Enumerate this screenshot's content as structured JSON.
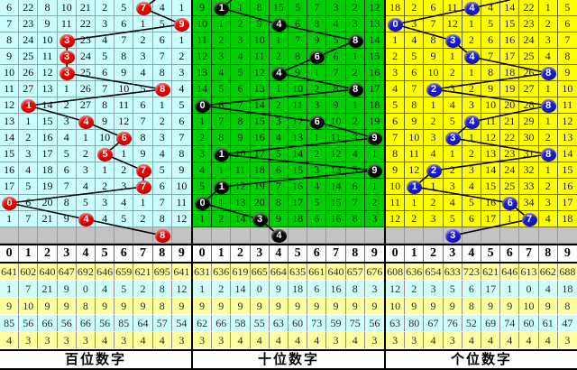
{
  "chart_data": {
    "type": "table",
    "columns": [
      "0",
      "1",
      "2",
      "3",
      "4",
      "5",
      "6",
      "7",
      "8",
      "9"
    ],
    "separator_bg": "#C3C3C3",
    "stat_row_bgs": [
      "#FFFF9E",
      "#CFFFFF",
      "#FFFF9E",
      "#CFFFFF",
      "#FFFF9E"
    ],
    "panels": [
      {
        "label": "百位数字",
        "panel_bg": "#CBFFFF",
        "grid_line": "#8FA7B5",
        "text_color": "#0b0b0b",
        "circle_color": "#EE0000",
        "lead_line_dx": 13,
        "rows": [
          [
            6,
            22,
            8,
            10,
            21,
            2,
            5,
            7,
            4,
            1
          ],
          [
            7,
            23,
            9,
            11,
            22,
            3,
            6,
            1,
            5,
            9
          ],
          [
            8,
            24,
            10,
            3,
            23,
            4,
            7,
            2,
            6,
            1
          ],
          [
            9,
            25,
            11,
            3,
            24,
            5,
            8,
            3,
            7,
            2
          ],
          [
            10,
            26,
            12,
            3,
            25,
            6,
            9,
            4,
            8,
            3
          ],
          [
            11,
            27,
            13,
            1,
            26,
            7,
            10,
            5,
            8,
            4
          ],
          [
            12,
            1,
            14,
            2,
            27,
            8,
            11,
            6,
            1,
            5
          ],
          [
            13,
            1,
            15,
            3,
            4,
            9,
            12,
            7,
            2,
            6
          ],
          [
            14,
            2,
            16,
            4,
            1,
            10,
            6,
            8,
            3,
            7
          ],
          [
            15,
            3,
            17,
            5,
            2,
            5,
            1,
            9,
            4,
            8
          ],
          [
            16,
            4,
            18,
            6,
            3,
            1,
            2,
            7,
            5,
            9
          ],
          [
            17,
            5,
            19,
            7,
            4,
            2,
            3,
            7,
            6,
            10
          ],
          [
            0,
            6,
            20,
            8,
            5,
            3,
            4,
            1,
            7,
            11
          ],
          [
            1,
            7,
            21,
            9,
            4,
            4,
            5,
            2,
            8,
            12
          ]
        ],
        "hit_columns": [
          7,
          9,
          3,
          3,
          3,
          8,
          1,
          4,
          6,
          5,
          7,
          7,
          0,
          4
        ],
        "pending_hit": 8,
        "stats": [
          [
            641,
            602,
            640,
            647,
            692,
            646,
            659,
            621,
            695,
            641
          ],
          [
            1,
            7,
            21,
            9,
            0,
            4,
            5,
            2,
            8,
            12
          ],
          [
            9,
            10,
            9,
            9,
            8,
            9,
            9,
            9,
            8,
            9
          ],
          [
            85,
            56,
            66,
            56,
            66,
            56,
            85,
            64,
            57,
            54
          ],
          [
            4,
            3,
            3,
            3,
            3,
            4,
            3,
            4,
            4,
            3
          ]
        ]
      },
      {
        "label": "十位数字",
        "panel_bg": "#00CE00",
        "grid_line": "#003B00",
        "text_color": "#001A00",
        "circle_color": "#000000",
        "lead_line_dx": 11,
        "rows": [
          [
            9,
            1,
            1,
            8,
            15,
            5,
            7,
            3,
            2,
            12
          ],
          [
            10,
            1,
            2,
            9,
            4,
            6,
            8,
            4,
            3,
            13
          ],
          [
            11,
            2,
            3,
            10,
            1,
            7,
            9,
            5,
            8,
            14
          ],
          [
            12,
            3,
            4,
            11,
            2,
            8,
            6,
            6,
            1,
            15
          ],
          [
            13,
            4,
            5,
            12,
            4,
            9,
            1,
            7,
            2,
            16
          ],
          [
            14,
            5,
            6,
            13,
            1,
            10,
            2,
            8,
            8,
            17
          ],
          [
            0,
            6,
            7,
            14,
            2,
            11,
            3,
            9,
            1,
            18
          ],
          [
            1,
            7,
            8,
            15,
            3,
            12,
            6,
            10,
            2,
            19
          ],
          [
            2,
            8,
            9,
            16,
            4,
            13,
            1,
            11,
            3,
            9
          ],
          [
            3,
            1,
            10,
            17,
            5,
            14,
            2,
            12,
            4,
            1
          ],
          [
            4,
            1,
            11,
            18,
            6,
            15,
            3,
            13,
            5,
            9
          ],
          [
            5,
            1,
            12,
            19,
            7,
            16,
            4,
            14,
            6,
            1
          ],
          [
            0,
            1,
            13,
            20,
            8,
            17,
            5,
            15,
            7,
            2
          ],
          [
            1,
            2,
            14,
            3,
            9,
            18,
            6,
            16,
            8,
            3
          ]
        ],
        "hit_columns": [
          1,
          4,
          8,
          6,
          4,
          8,
          0,
          6,
          9,
          1,
          9,
          1,
          0,
          3
        ],
        "pending_hit": 4,
        "stats": [
          [
            631,
            636,
            619,
            665,
            664,
            635,
            661,
            640,
            657,
            676
          ],
          [
            1,
            2,
            14,
            0,
            9,
            18,
            6,
            16,
            8,
            3
          ],
          [
            9,
            9,
            9,
            9,
            9,
            9,
            9,
            9,
            9,
            9
          ],
          [
            62,
            66,
            58,
            55,
            63,
            60,
            73,
            59,
            75,
            56
          ],
          [
            3,
            3,
            4,
            4,
            4,
            4,
            4,
            3,
            4,
            3
          ]
        ]
      },
      {
        "label": "个位数字",
        "panel_bg": "#FFFF00",
        "grid_line": "#63632C",
        "text_color": "#141448",
        "circle_color": "#1B1BD6",
        "lead_line_dx": 42,
        "rows": [
          [
            18,
            2,
            6,
            11,
            4,
            4,
            14,
            22,
            1,
            5
          ],
          [
            0,
            3,
            7,
            12,
            1,
            5,
            15,
            23,
            2,
            6
          ],
          [
            1,
            4,
            8,
            3,
            2,
            6,
            16,
            24,
            3,
            7
          ],
          [
            2,
            5,
            9,
            1,
            4,
            7,
            17,
            25,
            4,
            8
          ],
          [
            3,
            6,
            10,
            2,
            1,
            8,
            18,
            26,
            8,
            9
          ],
          [
            4,
            7,
            2,
            3,
            2,
            9,
            19,
            27,
            1,
            10
          ],
          [
            5,
            8,
            1,
            4,
            3,
            10,
            20,
            28,
            8,
            11
          ],
          [
            6,
            9,
            2,
            5,
            4,
            11,
            21,
            29,
            1,
            12
          ],
          [
            7,
            10,
            3,
            3,
            1,
            12,
            22,
            30,
            2,
            13
          ],
          [
            8,
            11,
            4,
            1,
            2,
            13,
            23,
            31,
            8,
            14
          ],
          [
            9,
            12,
            2,
            2,
            3,
            14,
            24,
            32,
            1,
            15
          ],
          [
            10,
            1,
            1,
            3,
            4,
            15,
            25,
            33,
            2,
            16
          ],
          [
            11,
            1,
            2,
            4,
            5,
            16,
            6,
            34,
            3,
            17
          ],
          [
            12,
            2,
            3,
            5,
            6,
            17,
            1,
            7,
            4,
            18
          ]
        ],
        "hit_columns": [
          4,
          0,
          3,
          4,
          8,
          2,
          8,
          4,
          3,
          8,
          2,
          1,
          6,
          7
        ],
        "pending_hit": 3,
        "stats": [
          [
            608,
            636,
            654,
            633,
            723,
            621,
            646,
            613,
            662,
            688
          ],
          [
            12,
            2,
            3,
            5,
            6,
            17,
            1,
            0,
            4,
            18
          ],
          [
            10,
            9,
            9,
            9,
            8,
            9,
            9,
            10,
            9,
            8
          ],
          [
            63,
            80,
            67,
            76,
            52,
            69,
            74,
            60,
            61,
            47
          ],
          [
            3,
            3,
            4,
            3,
            4,
            4,
            4,
            4,
            4,
            3
          ]
        ]
      }
    ]
  }
}
